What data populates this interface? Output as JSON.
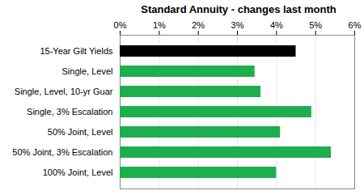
{
  "chart_data": {
    "type": "bar",
    "title": "Standard Annuity - changes last month",
    "orientation": "horizontal",
    "categories": [
      "15-Year Gilt Yields",
      "Single, Level",
      "Single, Level, 10-yr Guar",
      "Single, 3% Escalation",
      "50% Joint, Level",
      "50% Joint, 3% Escalation",
      "100% Joint, Level"
    ],
    "values": [
      4.5,
      3.45,
      3.6,
      4.9,
      4.1,
      5.4,
      4.0
    ],
    "colors": [
      "#000000",
      "#1fae4e",
      "#1fae4e",
      "#1fae4e",
      "#1fae4e",
      "#1fae4e",
      "#1fae4e"
    ],
    "xlim": [
      0,
      6
    ],
    "xticks": [
      {
        "value": 0,
        "label": "0%"
      },
      {
        "value": 1,
        "label": "1%"
      },
      {
        "value": 2,
        "label": "2%"
      },
      {
        "value": 3,
        "label": "3%"
      },
      {
        "value": 4,
        "label": "4%"
      },
      {
        "value": 5,
        "label": "5%"
      },
      {
        "value": 6,
        "label": "6%"
      }
    ],
    "grid": true
  }
}
